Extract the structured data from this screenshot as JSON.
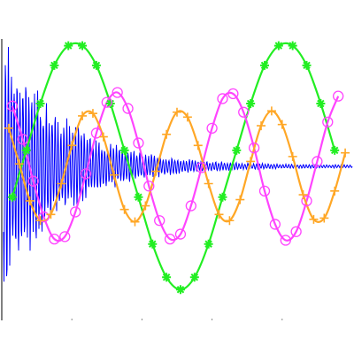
{
  "chart_data": {
    "type": "line",
    "title": "",
    "xlabel": "",
    "ylabel": "",
    "xlim": [
      0,
      10
    ],
    "ylim": [
      -1.25,
      1.25
    ],
    "grid": false,
    "legend": "none",
    "series": [
      {
        "color": "#0000ff",
        "marker": "none",
        "form": "damped-oscillation",
        "amplitude_start": 1.2,
        "decay_rate": 0.6,
        "frequency": 12,
        "x_start": 0.05,
        "x_end": 10
      },
      {
        "color": "#22ee22",
        "marker": "asterisk",
        "amplitude": 1.0,
        "period": 5.0,
        "x": [
          0.3,
          0.7,
          1.1,
          1.5,
          1.9,
          2.3,
          2.7,
          3.1,
          3.5,
          3.9,
          4.3,
          4.7,
          5.1,
          5.5,
          5.9,
          6.3,
          6.7,
          7.1,
          7.5,
          7.9,
          8.3,
          8.7,
          9.1,
          9.5
        ],
        "y": [
          -0.25,
          0.13,
          0.51,
          0.82,
          0.98,
          0.98,
          0.82,
          0.51,
          0.13,
          -0.25,
          -0.63,
          -0.9,
          -1.0,
          -0.9,
          -0.63,
          -0.25,
          0.13,
          0.51,
          0.82,
          0.98,
          0.98,
          0.82,
          0.51,
          0.13
        ]
      },
      {
        "color": "#ff44ff",
        "marker": "circle",
        "amplitude": 0.6,
        "period": 2.8,
        "x": [
          0.3,
          0.6,
          0.9,
          1.2,
          1.5,
          1.8,
          2.1,
          2.4,
          2.7,
          3.0,
          3.3,
          3.6,
          3.9,
          4.2,
          4.5,
          4.8,
          5.1,
          5.4,
          5.7,
          6.0,
          6.3,
          6.6,
          6.9,
          7.2,
          7.5,
          7.8,
          8.1,
          8.4,
          8.7,
          9.0,
          9.3,
          9.6
        ],
        "y": [
          0.49,
          0.22,
          -0.12,
          -0.41,
          -0.59,
          -0.57,
          -0.37,
          -0.06,
          0.27,
          0.52,
          0.6,
          0.47,
          0.19,
          -0.16,
          -0.44,
          -0.59,
          -0.55,
          -0.32,
          -0.01,
          0.31,
          0.55,
          0.59,
          0.44,
          0.15,
          -0.2,
          -0.47,
          -0.6,
          -0.53,
          -0.28,
          0.04,
          0.36,
          0.57
        ]
      },
      {
        "color": "#ffa726",
        "marker": "plus",
        "amplitude": 0.45,
        "period": 2.2,
        "x": [
          0.2,
          0.5,
          0.8,
          1.1,
          1.4,
          1.7,
          2.0,
          2.3,
          2.6,
          2.9,
          3.2,
          3.5,
          3.8,
          4.1,
          4.4,
          4.7,
          5.0,
          5.3,
          5.6,
          5.9,
          6.2,
          6.5,
          6.8,
          7.1,
          7.4,
          7.7,
          8.0,
          8.3,
          8.6,
          8.9,
          9.2,
          9.5,
          9.8
        ],
        "y": [
          0.31,
          0.02,
          -0.28,
          -0.44,
          -0.39,
          -0.14,
          0.17,
          0.41,
          0.43,
          0.24,
          -0.07,
          -0.35,
          -0.45,
          -0.32,
          -0.04,
          0.26,
          0.44,
          0.4,
          0.17,
          -0.14,
          -0.39,
          -0.44,
          -0.27,
          0.04,
          0.33,
          0.45,
          0.34,
          0.08,
          -0.23,
          -0.43,
          -0.42,
          -0.2,
          0.11
        ]
      }
    ]
  }
}
